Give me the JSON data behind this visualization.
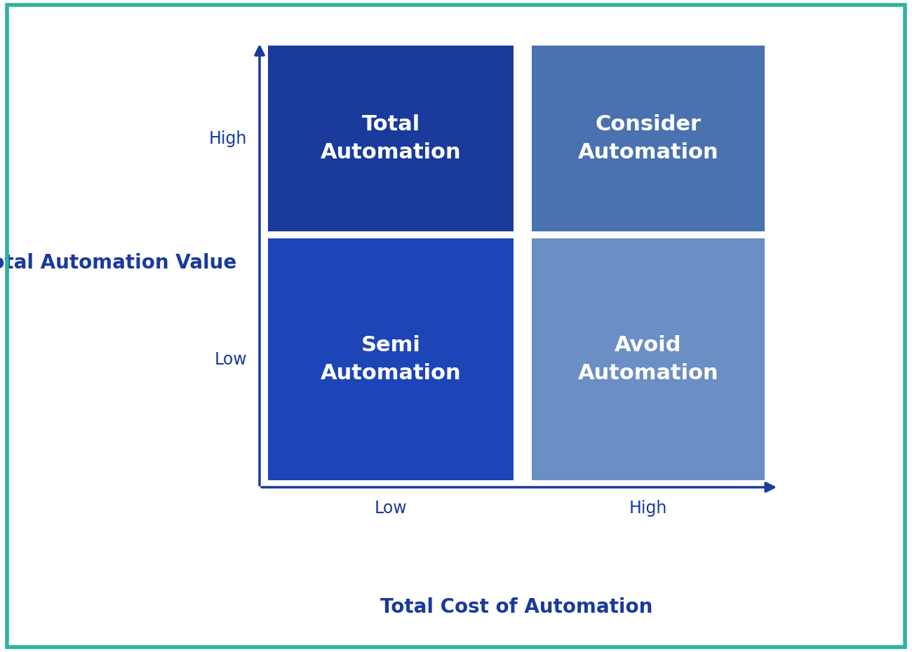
{
  "background_color": "#ffffff",
  "border_color": "#2bb5a0",
  "title_y_axis": "Total Automation Value",
  "title_x_axis": "Total Cost of Automation",
  "y_label_high": "High",
  "y_label_low": "Low",
  "x_label_low": "Low",
  "x_label_high": "High",
  "quadrants": [
    {
      "label": "Total\nAutomation",
      "col": 0,
      "row": 1,
      "color": "#1a3a9c"
    },
    {
      "label": "Consider\nAutomation",
      "col": 1,
      "row": 1,
      "color": "#4a72b0"
    },
    {
      "label": "Semi\nAutomation",
      "col": 0,
      "row": 0,
      "color": "#1e45b8"
    },
    {
      "label": "Avoid\nAutomation",
      "col": 1,
      "row": 0,
      "color": "#6b8fc4"
    }
  ],
  "label_color": "#1a3a9c",
  "axis_label_fontsize": 20,
  "tick_label_fontsize": 17,
  "quadrant_label_fontsize": 22,
  "axis_label_fontweight": "bold"
}
